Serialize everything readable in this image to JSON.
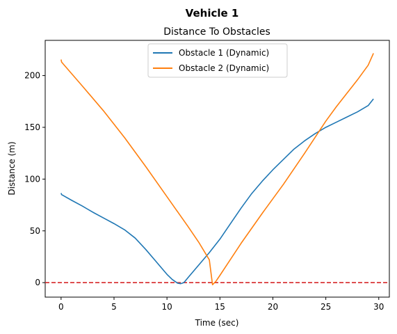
{
  "figure": {
    "suptitle": "Vehicle 1"
  },
  "chart_data": {
    "type": "line",
    "title": "Distance To Obstacles",
    "xlabel": "Time (sec)",
    "ylabel": "Distance (m)",
    "xlim": [
      -1.5,
      31.0
    ],
    "ylim": [
      -14,
      234
    ],
    "xticks": [
      0,
      5,
      10,
      15,
      20,
      25,
      30
    ],
    "yticks": [
      0,
      50,
      100,
      150,
      200
    ],
    "grid": false,
    "legend_position": "top-center",
    "reference_line": {
      "y": 0,
      "color": "#d62728",
      "style": "dashed"
    },
    "series": [
      {
        "name": "Obstacle 1 (Dynamic)",
        "color": "#1f77b4",
        "x": [
          0,
          0.05,
          1,
          2,
          3,
          4,
          5,
          6,
          7,
          8,
          9,
          10,
          10.5,
          11,
          11.3,
          11.6,
          12,
          13,
          14,
          15,
          16,
          17,
          18,
          19,
          20,
          21,
          22,
          23,
          24,
          25,
          26,
          27,
          28,
          29,
          29.5
        ],
        "y": [
          86.5,
          85,
          79.5,
          74,
          68,
          62.5,
          57,
          51,
          43,
          32,
          20,
          8,
          3,
          -0.5,
          -1,
          0,
          5,
          17,
          29,
          42,
          57,
          72,
          86,
          98,
          109,
          119,
          129,
          137,
          144,
          150,
          155,
          160,
          165,
          171,
          177.5
        ]
      },
      {
        "name": "Obstacle 2 (Dynamic)",
        "color": "#ff7f0e",
        "x": [
          0,
          0.05,
          2,
          4,
          6,
          8,
          10,
          12,
          13,
          14,
          14.3,
          14.6,
          15,
          17,
          19,
          21,
          23,
          25,
          26,
          27,
          28,
          29,
          29.5
        ],
        "y": [
          215.5,
          213,
          190,
          166,
          140,
          112,
          83,
          54,
          39,
          22,
          -2,
          1,
          7,
          38,
          67,
          95,
          125,
          156,
          170,
          183,
          196,
          210,
          221.5
        ]
      }
    ]
  }
}
